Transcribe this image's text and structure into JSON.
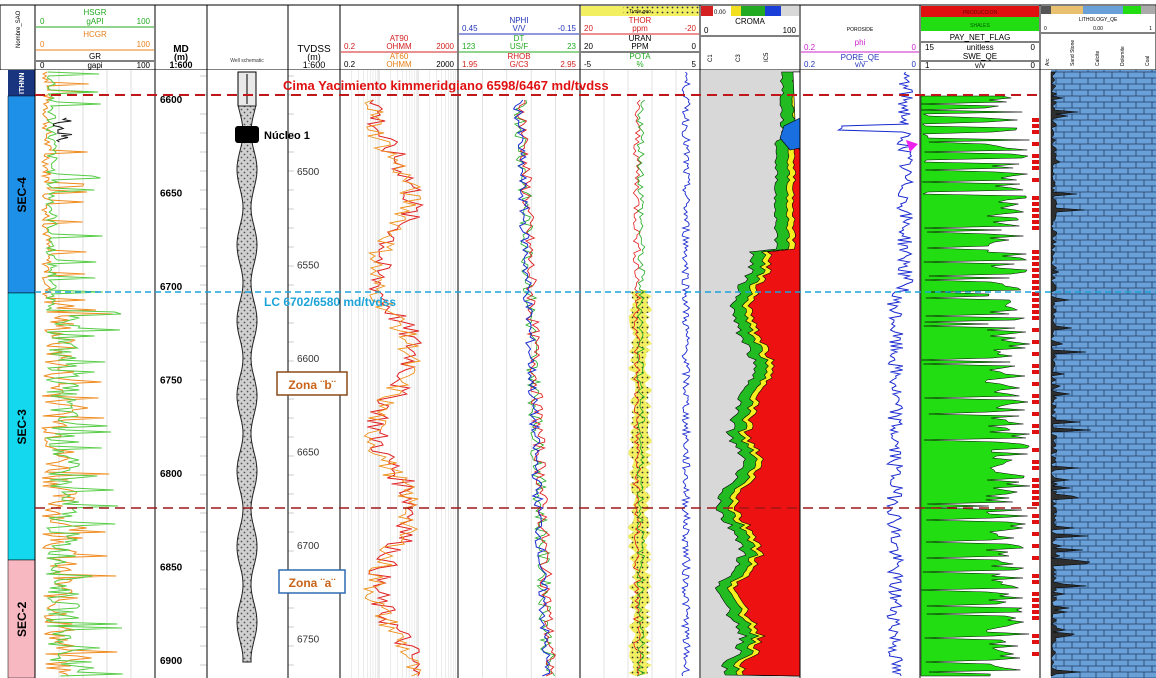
{
  "tracks": {
    "zone": {
      "header": "Nombre_SAO",
      "top_label": "ITHNN"
    },
    "gr": {
      "hsgr": {
        "name": "HSGR",
        "unit": "gAPI",
        "min": "0",
        "max": "100"
      },
      "hcgr": {
        "name": "HCGR",
        "unit": "",
        "min": "0",
        "max": "100"
      },
      "gr": {
        "name": "GR",
        "unit": "gapi",
        "min": "0",
        "max": "100"
      }
    },
    "md": {
      "title": "MD",
      "unit": "(m)",
      "scale": "1:600",
      "ticks": [
        "6600",
        "6650",
        "6700",
        "6750",
        "6800",
        "6850",
        "6900"
      ]
    },
    "well": {
      "header": "Well schematic",
      "core_label": "Núcleo 1"
    },
    "tvdss": {
      "title": "TVDSS",
      "unit": "(m)",
      "scale": "1:600",
      "ticks": [
        "6500",
        "6550",
        "6600",
        "6650",
        "6700",
        "6750"
      ]
    },
    "resistivity": {
      "at90": {
        "name": "AT90",
        "unit": "OHMM",
        "min": "0.2",
        "max": "2000"
      },
      "at60": {
        "name": "AT60",
        "unit": "OHMM",
        "min": "0.2",
        "max": "2000"
      }
    },
    "porosity": {
      "nphi": {
        "name": "NPHI",
        "unit": "V/V",
        "min": "0.45",
        "max": "-0.15"
      },
      "dt": {
        "name": "DT",
        "unit": "US/F",
        "min": "123",
        "max": "23"
      },
      "rhob": {
        "name": "RHOB",
        "unit": "G/C3",
        "min": "1.95",
        "max": "2.95"
      }
    },
    "spectral": {
      "top_label": "Tvole.geo",
      "thor": {
        "name": "THOR",
        "unit": "ppm",
        "min": "20",
        "max": "-20"
      },
      "uran": {
        "name": "URAN",
        "unit": "PPM",
        "min": "20",
        "max": "0"
      },
      "pota": {
        "name": "POTA",
        "unit": "%",
        "min": "-5",
        "max": "5"
      }
    },
    "croma": {
      "name": "CROMA",
      "min": "0",
      "max": "100",
      "top_min": "0.00",
      "cols": [
        "C1",
        "C3",
        "IC5"
      ]
    },
    "phi": {
      "top_label": "POROSIDE",
      "phi": {
        "name": "phi",
        "min": "0.2",
        "max": "0"
      },
      "pore": {
        "name": "PORE_QE",
        "unit": "v/v",
        "min": "0.2",
        "max": "0"
      }
    },
    "pay": {
      "top1": "PRODUCCION",
      "top2": "SHALES",
      "flag": {
        "name": "PAY_NET_FLAG",
        "min": "15",
        "max": "0",
        "unit": "unitless"
      },
      "swe": {
        "name": "SWE_QE",
        "min": "1",
        "max": "0",
        "unit": "v/v"
      }
    },
    "litho": {
      "top_label": "LITHOLOGY_QE",
      "sub_min": "0",
      "sub_mid": "0.00",
      "sub_max": "1",
      "cols": [
        "Arc",
        "Sand Stone",
        "Calcite",
        "Dolomite",
        "Coal"
      ]
    }
  },
  "zones": [
    {
      "label": "SEC-4",
      "color": "#1e90e8"
    },
    {
      "label": "SEC-3",
      "color": "#14d8ee"
    },
    {
      "label": "SEC-2",
      "color": "#f7b8c2"
    }
  ],
  "markers": {
    "top_reservoir": "Cima Yacimiento kimmeridgiano 6598/6467 md/tvdss",
    "lc": "LC 6702/6580 md/tvdss",
    "zona_b": "Zona ¨b¨",
    "zona_a": "Zona ¨a¨"
  },
  "colors": {
    "marker_red": "#b22222",
    "marker_blue": "#1ca3d8",
    "green_fill": "#22dd11",
    "lime_log": "#55cc44",
    "orange_log": "#f08a1c",
    "limestone": "#6aa0d8"
  }
}
